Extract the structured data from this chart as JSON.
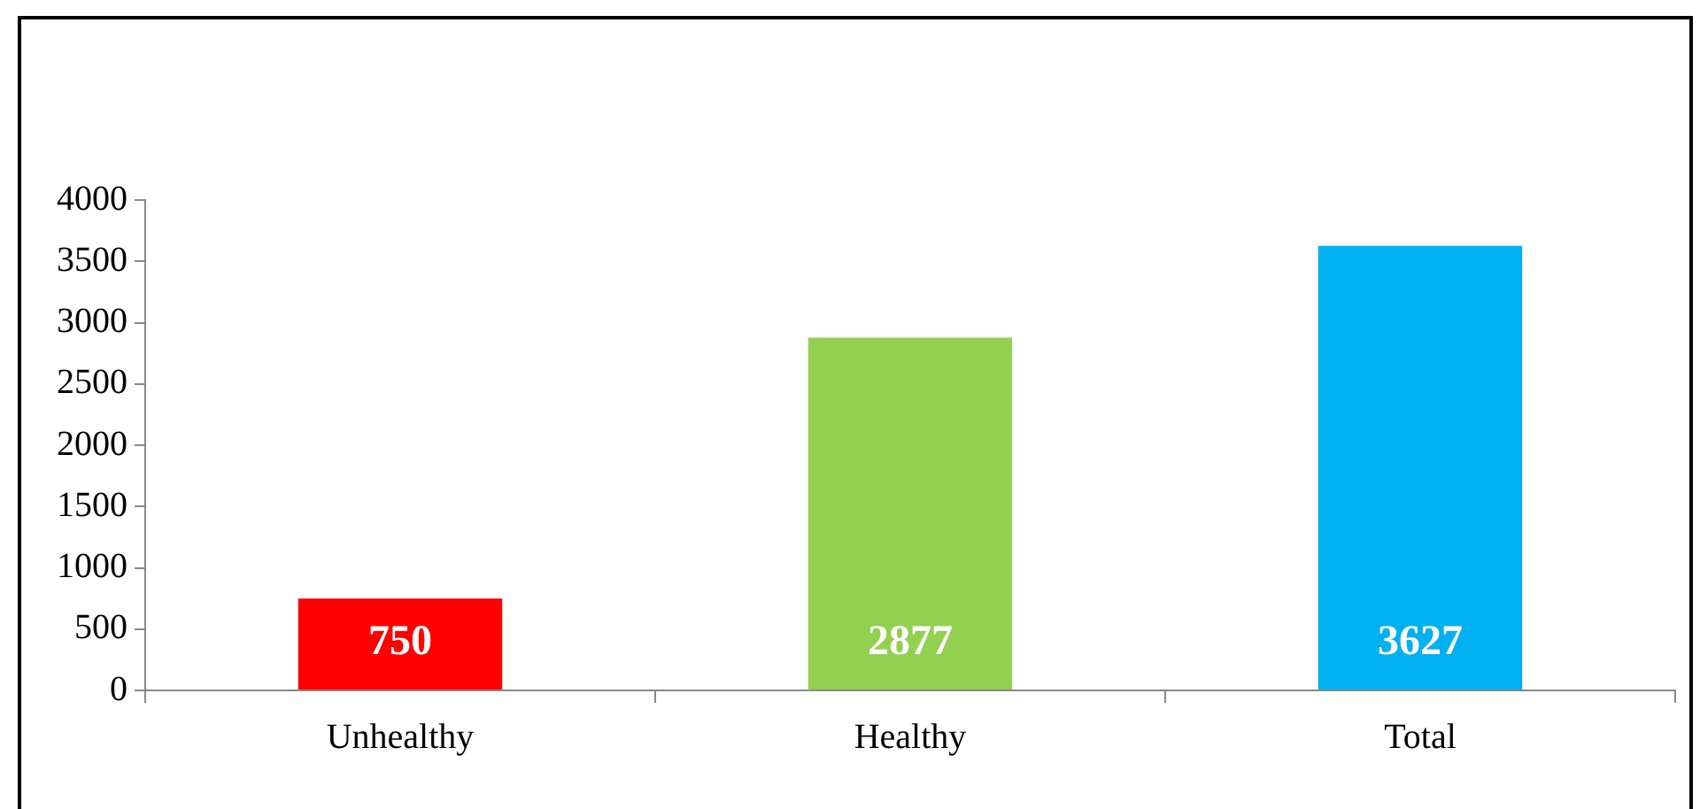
{
  "chart_data": {
    "type": "bar",
    "categories": [
      "Unhealthy",
      "Healthy",
      "Total"
    ],
    "values": [
      750,
      2877,
      3627
    ],
    "colors": [
      "#ff0000",
      "#92d050",
      "#00b0f0"
    ],
    "ylim": [
      0,
      4000
    ],
    "yticks": [
      0,
      500,
      1000,
      1500,
      2000,
      2500,
      3000,
      3500,
      4000
    ],
    "grid": false,
    "legend": false,
    "data_labels": true
  }
}
